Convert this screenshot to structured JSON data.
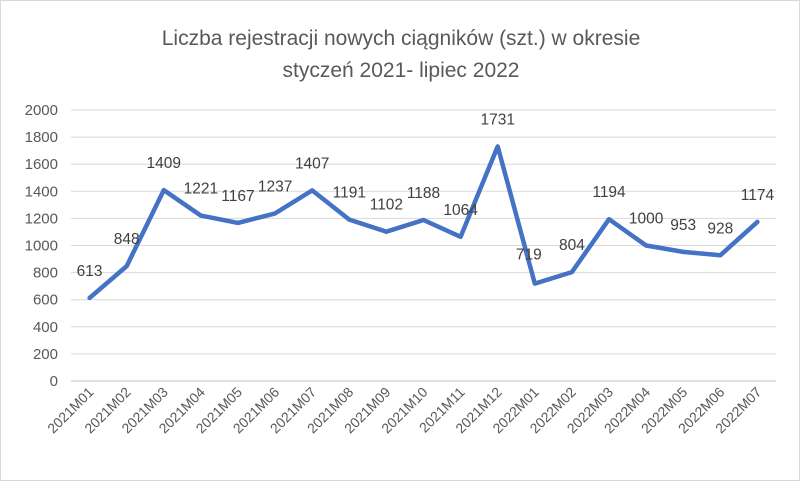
{
  "chart_data": {
    "type": "line",
    "title_lines": [
      "Liczba rejestracji nowych ciągników (szt.) w okresie",
      "styczeń 2021- lipiec 2022"
    ],
    "categories": [
      "2021M01",
      "2021M02",
      "2021M03",
      "2021M04",
      "2021M05",
      "2021M06",
      "2021M07",
      "2021M08",
      "2021M09",
      "2021M10",
      "2021M11",
      "2021M12",
      "2022M01",
      "2022M02",
      "2022M03",
      "2022M04",
      "2022M05",
      "2022M06",
      "2022M07"
    ],
    "series": [
      {
        "values": [
          613,
          848,
          1409,
          1221,
          1167,
          1237,
          1407,
          1191,
          1102,
          1188,
          1064,
          1731,
          719,
          804,
          1194,
          1000,
          953,
          928,
          1174
        ],
        "color": "#4472c4"
      }
    ],
    "yticks": [
      "0",
      "200",
      "400",
      "600",
      "800",
      "1000",
      "1200",
      "1400",
      "1600",
      "1800",
      "2000"
    ],
    "ylim": [
      0,
      2000
    ],
    "grid": true,
    "legend": "none"
  }
}
